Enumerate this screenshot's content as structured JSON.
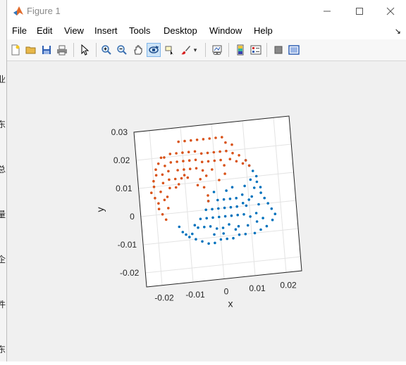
{
  "window": {
    "title": "Figure 1",
    "minimize_icon": "minimize-icon",
    "maximize_icon": "maximize-icon",
    "close_icon": "close-icon"
  },
  "menu": [
    "File",
    "Edit",
    "View",
    "Insert",
    "Tools",
    "Desktop",
    "Window",
    "Help"
  ],
  "left_strip_glyphs": [
    "业",
    "东",
    "总",
    "量",
    "企",
    "件",
    "东"
  ],
  "toolbar_icons": [
    "new-figure-icon",
    "open-file-icon",
    "save-icon",
    "print-icon",
    "pointer-icon",
    "zoom-in-icon",
    "zoom-out-icon",
    "pan-icon",
    "rotate-3d-icon",
    "data-cursor-icon",
    "brush-icon",
    "link-plot-icon",
    "colorbar-icon",
    "legend-icon",
    "hide-plot-tools-icon",
    "show-plot-tools-icon"
  ],
  "colors": {
    "series_blue": "#0072BD",
    "series_orange": "#D95319"
  },
  "chart_data": {
    "type": "scatter",
    "xlabel": "x",
    "ylabel": "y",
    "xlim": [
      -0.025,
      0.025
    ],
    "ylim": [
      -0.025,
      0.03
    ],
    "xticks": [
      "-0.02",
      "-0.01",
      "0",
      "0.01",
      "0.02"
    ],
    "yticks": [
      "-0.02",
      "-0.01",
      "0",
      "0.01",
      "0.02",
      "0.03"
    ],
    "grid": true,
    "series": [
      {
        "color": "#0072BD",
        "points": [
          [
            -0.013,
            -0.005
          ],
          [
            -0.012,
            -0.007
          ],
          [
            -0.011,
            -0.008
          ],
          [
            -0.01,
            -0.009
          ],
          [
            -0.008,
            -0.01
          ],
          [
            -0.006,
            -0.011
          ],
          [
            -0.004,
            -0.012
          ],
          [
            -0.002,
            -0.012
          ],
          [
            0.0,
            -0.011
          ],
          [
            0.002,
            -0.011
          ],
          [
            0.004,
            -0.011
          ],
          [
            0.006,
            -0.01
          ],
          [
            0.008,
            -0.01
          ],
          [
            0.011,
            -0.01
          ],
          [
            0.013,
            -0.009
          ],
          [
            0.015,
            -0.008
          ],
          [
            0.017,
            -0.006
          ],
          [
            0.018,
            -0.004
          ],
          [
            0.017,
            -0.002
          ],
          [
            0.016,
            0.0
          ],
          [
            0.015,
            0.002
          ],
          [
            0.014,
            0.004
          ],
          [
            0.014,
            0.006
          ],
          [
            0.013,
            0.008
          ],
          [
            0.013,
            0.01
          ],
          [
            0.012,
            0.012
          ],
          [
            0.011,
            0.014
          ],
          [
            0.01,
            0.016
          ],
          [
            0.011,
            0.009
          ],
          [
            0.009,
            0.007
          ],
          [
            0.011,
            0.003
          ],
          [
            0.009,
            0.0
          ],
          [
            -0.007,
            -0.006
          ],
          [
            -0.005,
            -0.006
          ],
          [
            -0.003,
            -0.006
          ],
          [
            -0.001,
            -0.007
          ],
          [
            0.001,
            -0.007
          ],
          [
            0.003,
            -0.006
          ],
          [
            0.006,
            -0.007
          ],
          [
            0.009,
            -0.007
          ],
          [
            0.012,
            -0.006
          ],
          [
            0.014,
            -0.005
          ],
          [
            -0.006,
            -0.003
          ],
          [
            -0.004,
            -0.003
          ],
          [
            -0.002,
            -0.003
          ],
          [
            0.0,
            -0.003
          ],
          [
            0.002,
            -0.003
          ],
          [
            0.004,
            -0.003
          ],
          [
            0.006,
            -0.003
          ],
          [
            0.008,
            -0.003
          ],
          [
            0.01,
            -0.004
          ],
          [
            0.012,
            -0.003
          ],
          [
            -0.004,
            0.0
          ],
          [
            -0.002,
            0.0
          ],
          [
            0.0,
            0.0
          ],
          [
            0.002,
            0.0
          ],
          [
            0.004,
            0.0
          ],
          [
            0.006,
            0.0
          ],
          [
            0.008,
            0.001
          ],
          [
            0.01,
            0.002
          ],
          [
            0.013,
            0.0
          ],
          [
            -0.003,
            0.003
          ],
          [
            0.0,
            0.003
          ],
          [
            0.002,
            0.003
          ],
          [
            0.004,
            0.003
          ],
          [
            0.006,
            0.003
          ],
          [
            0.008,
            0.004
          ],
          [
            0.012,
            0.006
          ],
          [
            -0.001,
            0.006
          ],
          [
            0.003,
            0.006
          ],
          [
            0.005,
            0.007
          ],
          [
            -0.009,
            -0.008
          ],
          [
            -0.008,
            -0.005
          ],
          [
            -0.002,
            -0.009
          ],
          [
            0.001,
            -0.009
          ],
          [
            0.005,
            -0.008
          ]
        ]
      },
      {
        "color": "#D95319",
        "points": [
          [
            -0.017,
            0.02
          ],
          [
            -0.018,
            0.018
          ],
          [
            -0.019,
            0.016
          ],
          [
            -0.019,
            0.014
          ],
          [
            -0.02,
            0.012
          ],
          [
            -0.02,
            0.01
          ],
          [
            -0.021,
            0.008
          ],
          [
            -0.02,
            0.006
          ],
          [
            -0.019,
            0.004
          ],
          [
            -0.019,
            0.002
          ],
          [
            -0.018,
            0.0
          ],
          [
            -0.017,
            -0.002
          ],
          [
            -0.016,
            0.02
          ],
          [
            -0.016,
            0.017
          ],
          [
            -0.017,
            0.014
          ],
          [
            -0.017,
            0.011
          ],
          [
            -0.018,
            0.008
          ],
          [
            -0.017,
            0.005
          ],
          [
            -0.016,
            0.002
          ],
          [
            -0.014,
            0.021
          ],
          [
            -0.014,
            0.018
          ],
          [
            -0.015,
            0.015
          ],
          [
            -0.015,
            0.012
          ],
          [
            -0.015,
            0.009
          ],
          [
            -0.016,
            0.006
          ],
          [
            -0.012,
            0.021
          ],
          [
            -0.012,
            0.018
          ],
          [
            -0.012,
            0.015
          ],
          [
            -0.013,
            0.012
          ],
          [
            -0.013,
            0.009
          ],
          [
            -0.01,
            0.021
          ],
          [
            -0.01,
            0.018
          ],
          [
            -0.01,
            0.015
          ],
          [
            -0.011,
            0.012
          ],
          [
            -0.008,
            0.021
          ],
          [
            -0.008,
            0.018
          ],
          [
            -0.008,
            0.015
          ],
          [
            -0.009,
            0.012
          ],
          [
            -0.006,
            0.021
          ],
          [
            -0.006,
            0.018
          ],
          [
            -0.006,
            0.015
          ],
          [
            -0.004,
            0.02
          ],
          [
            -0.004,
            0.017
          ],
          [
            -0.004,
            0.014
          ],
          [
            -0.003,
            0.012
          ],
          [
            -0.002,
            0.02
          ],
          [
            -0.002,
            0.017
          ],
          [
            -0.001,
            0.014
          ],
          [
            0.0,
            0.02
          ],
          [
            0.0,
            0.017
          ],
          [
            0.002,
            0.02
          ],
          [
            0.002,
            0.017
          ],
          [
            0.003,
            0.015
          ],
          [
            0.004,
            0.02
          ],
          [
            0.005,
            0.017
          ],
          [
            0.006,
            0.019
          ],
          [
            0.007,
            0.016
          ],
          [
            0.008,
            0.018
          ],
          [
            0.009,
            0.015
          ],
          [
            0.01,
            0.016
          ],
          [
            0.011,
            0.014
          ],
          [
            -0.011,
            0.025
          ],
          [
            -0.009,
            0.025
          ],
          [
            -0.007,
            0.025
          ],
          [
            -0.005,
            0.025
          ],
          [
            -0.003,
            0.025
          ],
          [
            -0.001,
            0.025
          ],
          [
            0.001,
            0.025
          ],
          [
            0.003,
            0.025
          ],
          [
            0.004,
            0.023
          ],
          [
            0.006,
            0.022
          ],
          [
            -0.004,
            0.008
          ],
          [
            -0.003,
            0.005
          ],
          [
            -0.003,
            0.003
          ],
          [
            -0.005,
            0.011
          ],
          [
            0.001,
            0.01
          ],
          [
            -0.006,
            0.009
          ],
          [
            0.003,
            0.012
          ],
          [
            -0.01,
            0.013
          ],
          [
            -0.012,
            0.01
          ]
        ]
      }
    ]
  }
}
